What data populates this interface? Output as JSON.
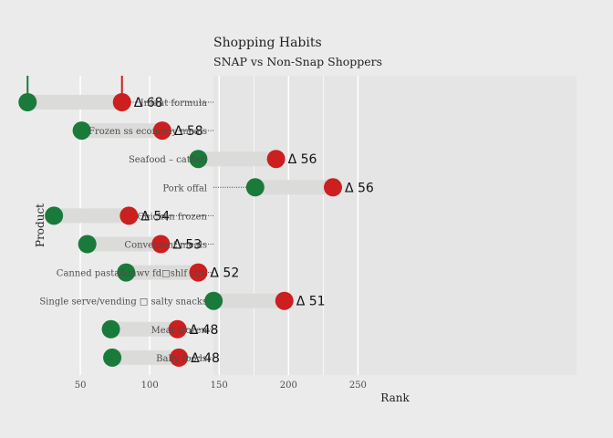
{
  "chart_data": {
    "type": "dumbbell",
    "title": "Shopping Habits",
    "subtitle": "SNAP vs Non-Snap Shoppers",
    "xlabel": "Rank",
    "ylabel": "Product",
    "xlim": [
      0,
      262
    ],
    "xticks": [
      50,
      100,
      150,
      200,
      250
    ],
    "grid": true,
    "categories": [
      "Infant formula",
      "Frozen ss economy meals",
      "Seafood – catfish",
      "Pork offal",
      "Chicken frozen",
      "Convenient meals",
      "Canned pasta&mwv fd□shlf stbl",
      "Single serve/vending □ salty snacks",
      "Meat frozen",
      "Baby foods"
    ],
    "series": [
      {
        "color": "#1a7a3a",
        "values": [
          12,
          51,
          135,
          176,
          31,
          55,
          83,
          146,
          72,
          73
        ]
      },
      {
        "color": "#cc1f1f",
        "values": [
          80,
          109,
          191,
          232,
          85,
          108,
          135,
          197,
          120,
          121
        ]
      }
    ],
    "delta_labels": [
      "Δ 68",
      "Δ 58",
      "Δ 56",
      "Δ 56",
      "Δ 54",
      "Δ 53",
      "Δ 52",
      "Δ 51",
      "Δ 48",
      "Δ 48"
    ]
  }
}
